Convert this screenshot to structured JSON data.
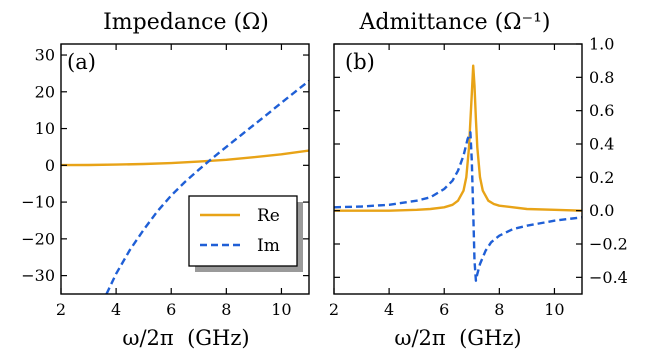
{
  "chart_data": [
    {
      "type": "line",
      "title": "Impedance (Ω)",
      "panel_label": "(a)",
      "xlabel": "ω/2π  (GHz)",
      "ylabel": "",
      "xlim": [
        2,
        11
      ],
      "ylim": [
        -35,
        33
      ],
      "xticks": [
        2,
        4,
        6,
        8,
        10
      ],
      "yticks": [
        -30,
        -20,
        -10,
        0,
        10,
        20,
        30
      ],
      "ytick_labels": [
        "−30",
        "−20",
        "−10",
        "0",
        "10",
        "20",
        "30"
      ],
      "grid": false,
      "legend_position": "lower-right",
      "series": [
        {
          "name": "Re",
          "style": "solid",
          "color": "#e8a317",
          "x": [
            2,
            3,
            4,
            5,
            6,
            7,
            8,
            9,
            10,
            11
          ],
          "y": [
            0.05,
            0.1,
            0.2,
            0.35,
            0.6,
            1.0,
            1.5,
            2.2,
            3.0,
            4.0
          ]
        },
        {
          "name": "Im",
          "style": "dashed",
          "color": "#1f5fd6",
          "x": [
            3.65,
            4,
            4.5,
            5,
            5.5,
            6,
            6.5,
            7,
            7.5,
            8,
            8.5,
            9,
            9.5,
            10,
            10.5,
            11
          ],
          "y": [
            -35,
            -29.5,
            -23,
            -17.5,
            -12.5,
            -8.2,
            -4.5,
            -1.2,
            2.0,
            5.0,
            8.0,
            11.0,
            14.0,
            17.0,
            20.0,
            23.0
          ]
        }
      ]
    },
    {
      "type": "line",
      "title": "Admittance (Ω⁻¹)",
      "panel_label": "(b)",
      "xlabel": "ω/2π  (GHz)",
      "ylabel": "",
      "xlim": [
        2,
        11
      ],
      "ylim": [
        -0.5,
        1.0
      ],
      "xticks": [
        2,
        4,
        6,
        8,
        10
      ],
      "yticks": [
        -0.4,
        -0.2,
        0.0,
        0.2,
        0.4,
        0.6,
        0.8,
        1.0
      ],
      "ytick_labels": [
        "−0.4",
        "−0.2",
        "0.0",
        "0.2",
        "0.4",
        "0.6",
        "0.8",
        "1.0"
      ],
      "yaxis_side": "right",
      "grid": false,
      "series": [
        {
          "name": "Re",
          "style": "solid",
          "color": "#e8a317",
          "x": [
            2,
            4,
            5,
            5.5,
            6,
            6.3,
            6.5,
            6.7,
            6.8,
            6.9,
            7.0,
            7.05,
            7.1,
            7.15,
            7.2,
            7.3,
            7.4,
            7.6,
            7.8,
            8,
            8.5,
            9,
            10,
            11
          ],
          "y": [
            0.0,
            0.0,
            0.005,
            0.01,
            0.02,
            0.035,
            0.06,
            0.12,
            0.2,
            0.38,
            0.7,
            0.87,
            0.75,
            0.55,
            0.38,
            0.2,
            0.12,
            0.06,
            0.04,
            0.03,
            0.02,
            0.01,
            0.005,
            0.0
          ]
        },
        {
          "name": "Im",
          "style": "dashed",
          "color": "#1f5fd6",
          "x": [
            2,
            3,
            4,
            5,
            5.5,
            6,
            6.3,
            6.5,
            6.7,
            6.85,
            6.95,
            7.0,
            7.05,
            7.1,
            7.15,
            7.2,
            7.3,
            7.5,
            7.7,
            8,
            8.5,
            9,
            10,
            11
          ],
          "y": [
            0.02,
            0.025,
            0.035,
            0.06,
            0.08,
            0.13,
            0.18,
            0.24,
            0.33,
            0.43,
            0.47,
            0.3,
            0.0,
            -0.3,
            -0.42,
            -0.38,
            -0.32,
            -0.24,
            -0.19,
            -0.15,
            -0.11,
            -0.09,
            -0.06,
            -0.04
          ]
        }
      ]
    }
  ]
}
